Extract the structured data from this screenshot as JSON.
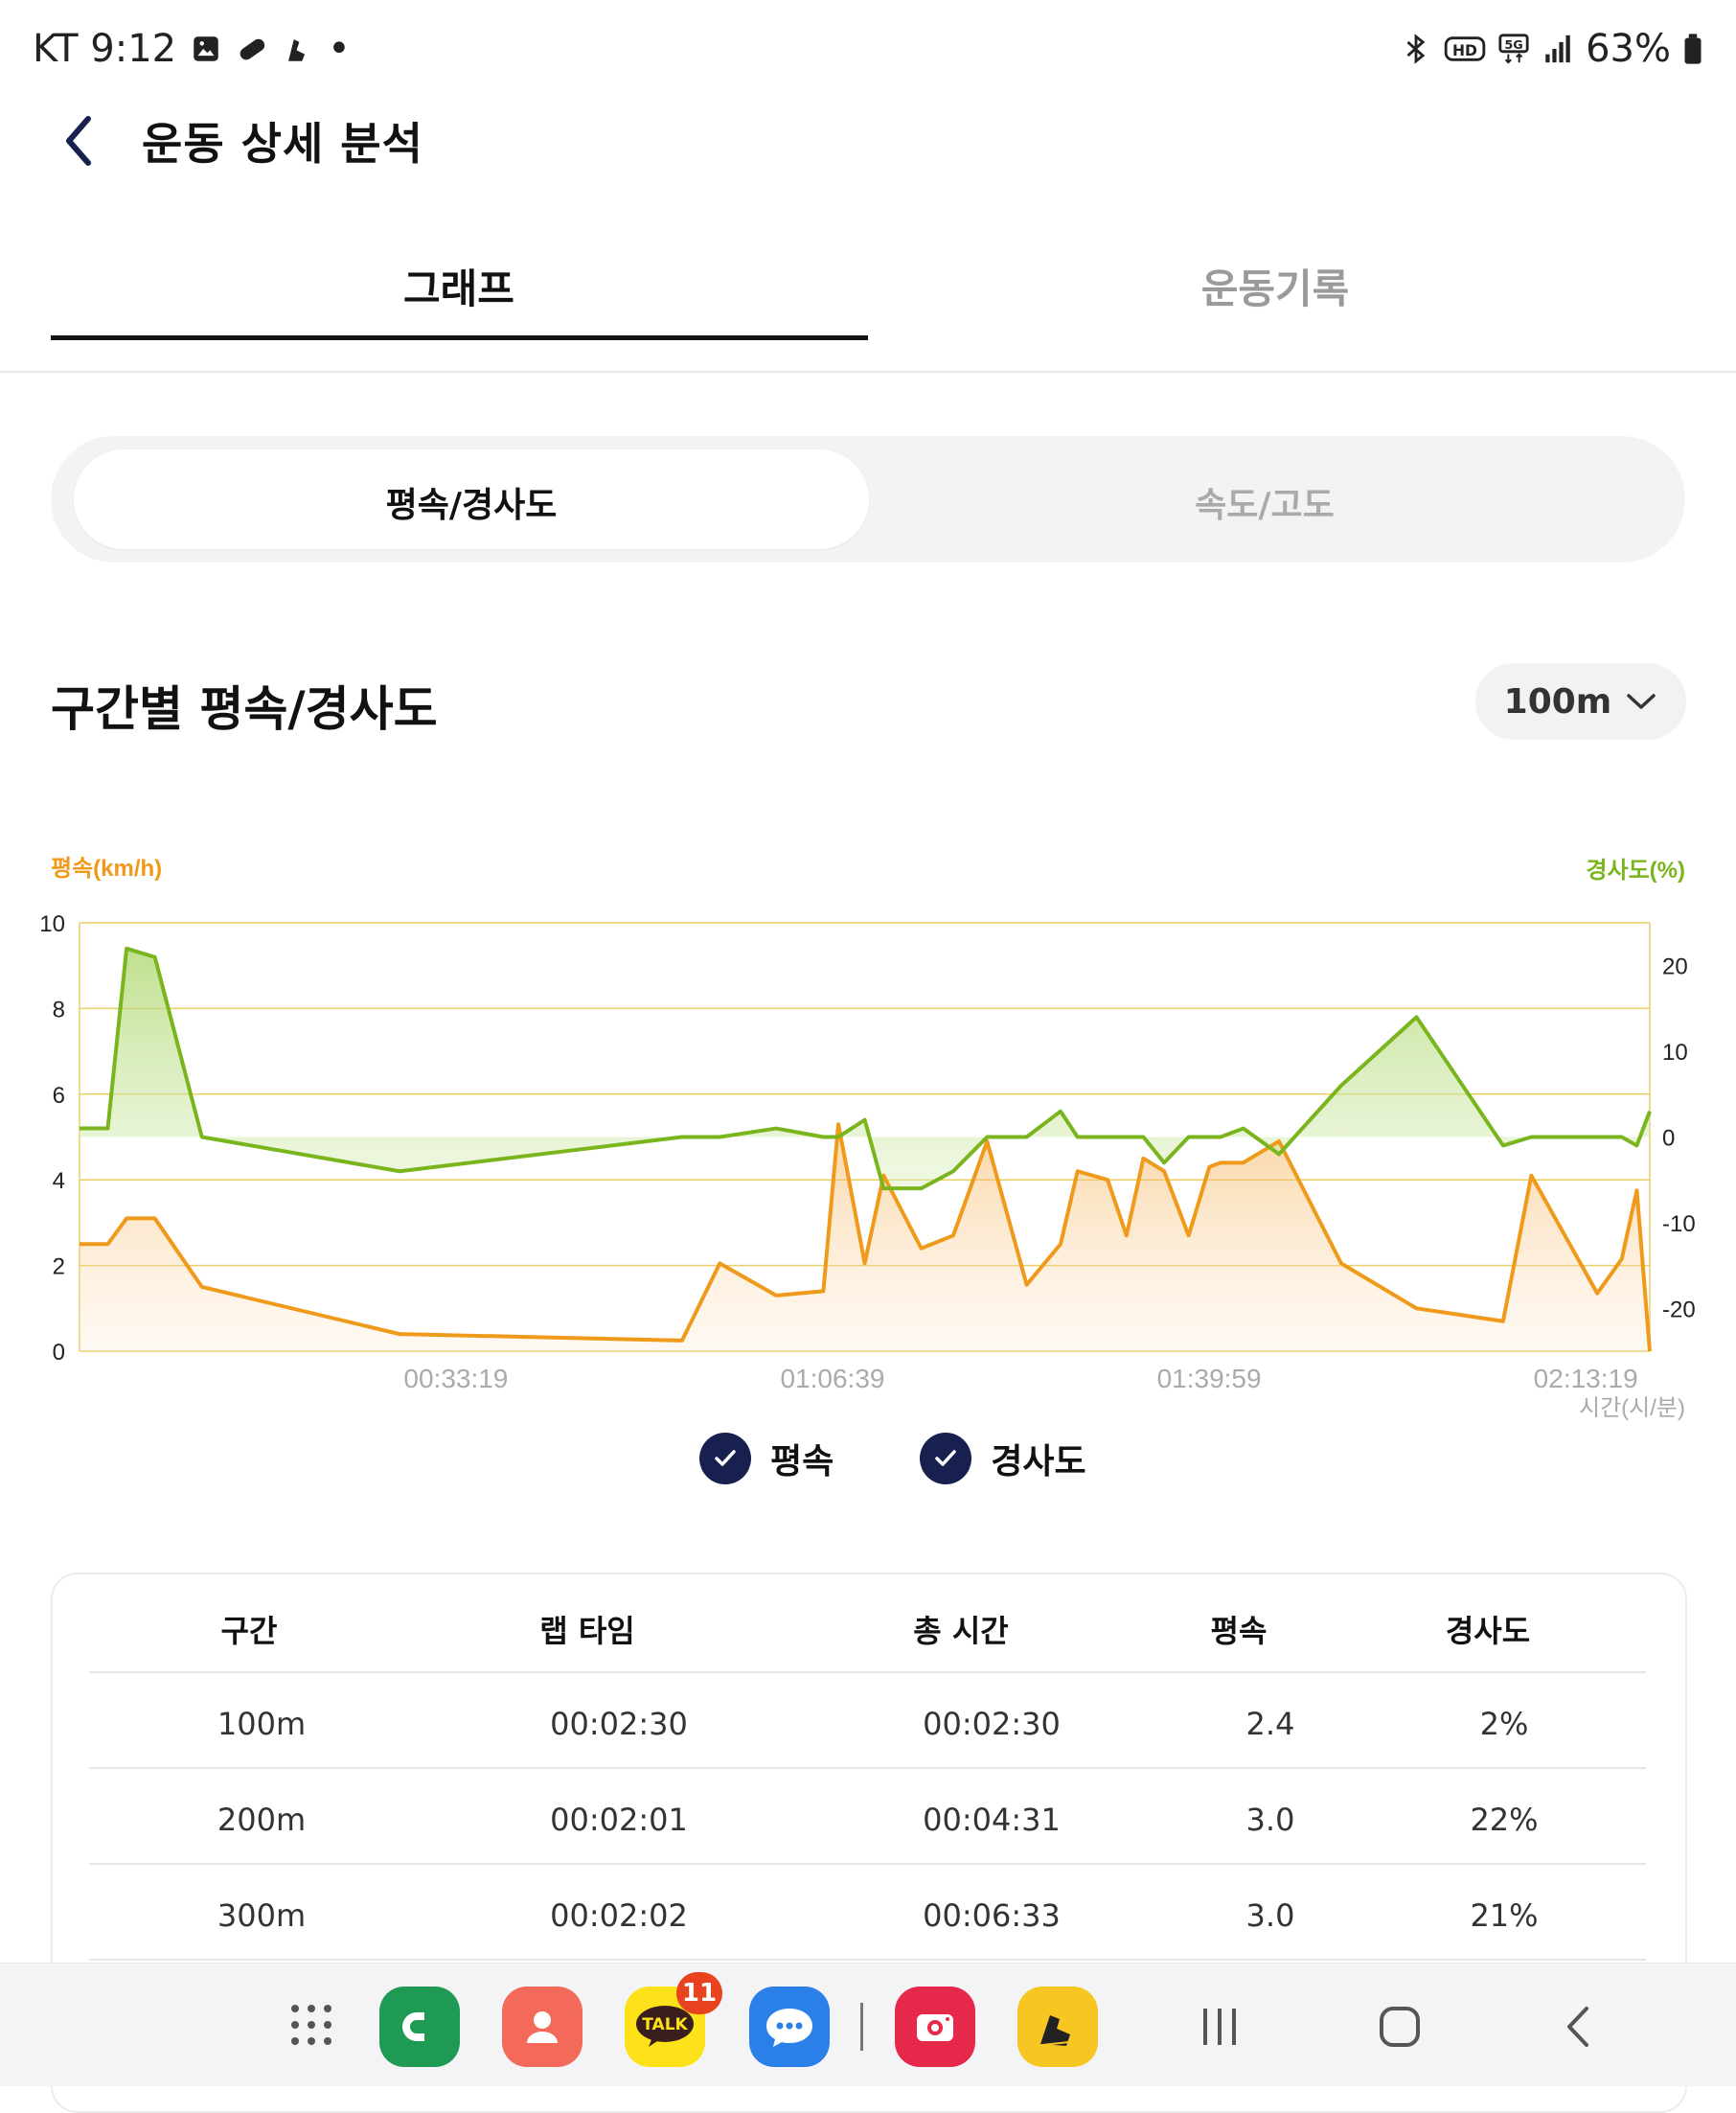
{
  "status_bar": {
    "carrier_time": "KT 9:12",
    "dot": "•",
    "battery": "63%"
  },
  "header": {
    "title": "운동 상세 분석"
  },
  "tabs": [
    {
      "label": "그래프",
      "active": true
    },
    {
      "label": "운동기록",
      "active": false
    }
  ],
  "segments": [
    {
      "label": "평속/경사도",
      "active": true
    },
    {
      "label": "속도/고도",
      "active": false
    }
  ],
  "section": {
    "title": "구간별 평속/경사도",
    "interval_select": "100m"
  },
  "chart_data": {
    "type": "line",
    "left_axis_label": "평속(km/h)",
    "right_axis_label": "경사도(%)",
    "x_axis_label": "시간(시/분)",
    "x_ticks": [
      "00:33:19",
      "01:06:39",
      "01:39:59",
      "02:13:19"
    ],
    "x_tick_seconds": [
      1999,
      3999,
      5999,
      7999
    ],
    "xlim_seconds": [
      0,
      8339
    ],
    "ylim_left": [
      0,
      10
    ],
    "ylim_right": [
      -25,
      25
    ],
    "left_ticks": [
      10,
      8,
      6,
      4,
      2,
      0
    ],
    "right_ticks": [
      20,
      10,
      0,
      -10,
      -20
    ],
    "grid": true,
    "colors": {
      "speed": "#ef9a1a",
      "slope": "#7ab51d",
      "grid": "#e8cf66"
    },
    "series": [
      {
        "name": "평속",
        "axis": "left",
        "x": [
          0,
          150,
          250,
          400,
          650,
          1700,
          3200,
          3400,
          3700,
          3950,
          4030,
          4170,
          4270,
          4470,
          4640,
          4820,
          5030,
          5210,
          5300,
          5460,
          5560,
          5650,
          5760,
          5890,
          6000,
          6060,
          6180,
          6370,
          6700,
          7100,
          7560,
          7710,
          8060,
          8190,
          8270,
          8339
        ],
        "y": [
          2.5,
          2.5,
          3.1,
          3.1,
          1.5,
          0.4,
          0.25,
          2.05,
          1.3,
          1.4,
          5.3,
          2.05,
          4.1,
          2.4,
          2.7,
          4.9,
          1.55,
          2.5,
          4.2,
          4.0,
          2.7,
          4.5,
          4.2,
          2.7,
          4.3,
          4.4,
          4.4,
          4.9,
          2.05,
          1.0,
          0.7,
          4.1,
          1.35,
          2.15,
          3.75,
          0
        ]
      },
      {
        "name": "경사도",
        "axis": "right",
        "x": [
          0,
          150,
          250,
          400,
          650,
          1700,
          3200,
          3400,
          3700,
          3950,
          4030,
          4170,
          4270,
          4470,
          4640,
          4820,
          5030,
          5210,
          5300,
          5460,
          5560,
          5650,
          5760,
          5890,
          6000,
          6060,
          6180,
          6370,
          6700,
          7100,
          7560,
          7710,
          8060,
          8190,
          8270,
          8339
        ],
        "y": [
          1,
          1,
          22,
          21,
          0,
          -4,
          0,
          0,
          1,
          0,
          0,
          2,
          -6,
          -6,
          -4,
          0,
          0,
          3,
          0,
          0,
          0,
          0,
          -3,
          0,
          0,
          0,
          1,
          -2,
          6,
          14,
          -1,
          0,
          0,
          0,
          -1,
          3
        ]
      }
    ]
  },
  "legend": [
    {
      "label": "평속",
      "checked": true
    },
    {
      "label": "경사도",
      "checked": true
    }
  ],
  "table": {
    "headers": [
      "구간",
      "랩 타임",
      "총 시간",
      "평속",
      "경사도"
    ],
    "rows": [
      [
        "100m",
        "00:02:30",
        "00:02:30",
        "2.4",
        "2%"
      ],
      [
        "200m",
        "00:02:01",
        "00:04:31",
        "3.0",
        "22%"
      ],
      [
        "300m",
        "00:02:02",
        "00:06:33",
        "3.0",
        "21%"
      ]
    ]
  },
  "nav": {
    "kakao_badge": "11",
    "kakao_label": "TALK"
  }
}
